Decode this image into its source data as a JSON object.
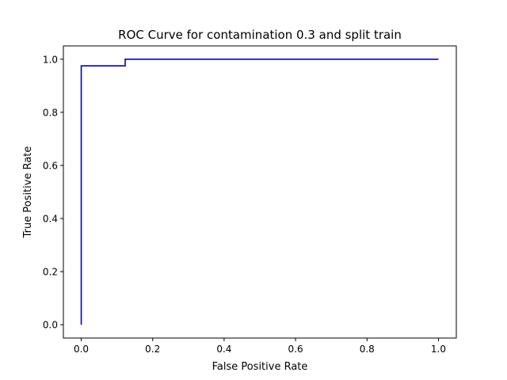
{
  "chart_data": {
    "type": "line",
    "title": "ROC Curve for contamination 0.3 and split train",
    "xlabel": "False Positive Rate",
    "ylabel": "True Positive Rate",
    "xlim": [
      -0.05,
      1.05
    ],
    "ylim": [
      -0.05,
      1.05
    ],
    "xticks": [
      0.0,
      0.2,
      0.4,
      0.6,
      0.8,
      1.0
    ],
    "yticks": [
      0.0,
      0.2,
      0.4,
      0.6,
      0.8,
      1.0
    ],
    "xtick_labels": [
      "0.0",
      "0.2",
      "0.4",
      "0.6",
      "0.8",
      "1.0"
    ],
    "ytick_labels": [
      "0.0",
      "0.2",
      "0.4",
      "0.6",
      "0.8",
      "1.0"
    ],
    "grid": false,
    "series": [
      {
        "color": "#0000cc",
        "x": [
          0.0,
          0.0,
          0.123,
          0.123,
          1.0
        ],
        "y": [
          0.0,
          0.975,
          0.975,
          1.0,
          1.0
        ]
      }
    ]
  }
}
